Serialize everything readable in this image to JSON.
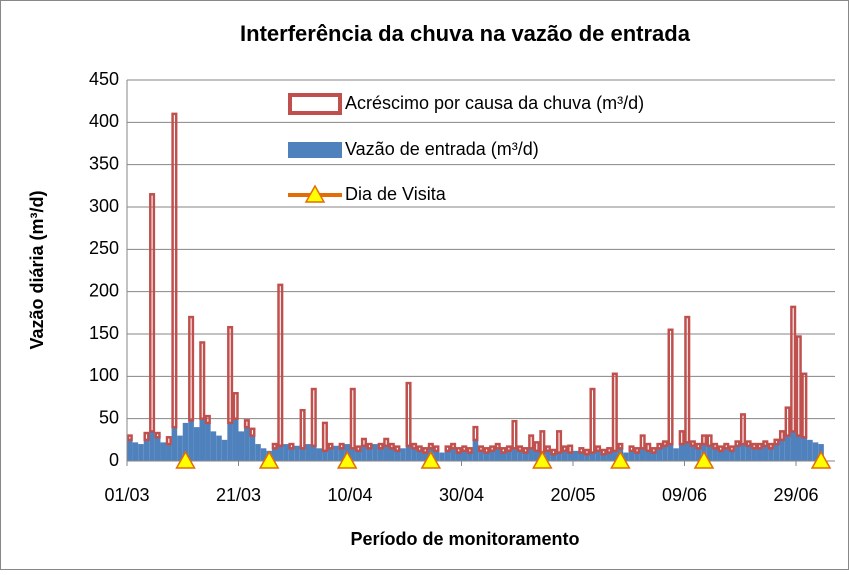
{
  "chart_data": {
    "type": "stacked-bar",
    "title": "Interferência da chuva na vazão de entrada",
    "x_label": "Período de monitoramento",
    "y_label": "Vazão diária (m³/d)",
    "x": [
      0,
      1,
      2,
      3,
      4,
      5,
      6,
      7,
      8,
      9,
      10,
      11,
      12,
      13,
      14,
      15,
      16,
      17,
      18,
      19,
      20,
      21,
      22,
      23,
      24,
      25,
      26,
      27,
      28,
      29,
      30,
      31,
      32,
      33,
      34,
      35,
      36,
      37,
      38,
      39,
      40,
      41,
      42,
      43,
      44,
      45,
      46,
      47,
      48,
      49,
      50,
      51,
      52,
      53,
      54,
      55,
      56,
      57,
      58,
      59,
      60,
      61,
      62,
      63,
      64,
      65,
      66,
      67,
      68,
      69,
      70,
      71,
      72,
      73,
      74,
      75,
      76,
      77,
      78,
      79,
      80,
      81,
      82,
      83,
      84,
      85,
      86,
      87,
      88,
      89,
      90,
      91,
      92,
      93,
      94,
      95,
      96,
      97,
      98,
      99,
      100,
      101,
      102,
      103,
      104,
      105,
      106,
      107,
      108,
      109,
      110,
      111,
      112,
      113,
      114,
      115,
      116,
      117,
      118,
      119,
      120,
      121,
      122,
      123,
      124
    ],
    "series": [
      {
        "name": "Vazão de entrada  (m³/d)",
        "color": "#4f81bd",
        "values": [
          25,
          22,
          20,
          25,
          35,
          28,
          22,
          20,
          40,
          30,
          45,
          48,
          40,
          50,
          45,
          35,
          30,
          25,
          45,
          50,
          35,
          40,
          30,
          20,
          15,
          12,
          15,
          18,
          20,
          15,
          18,
          15,
          20,
          18,
          15,
          12,
          15,
          18,
          15,
          20,
          15,
          12,
          18,
          15,
          20,
          15,
          18,
          15,
          12,
          15,
          18,
          15,
          12,
          10,
          15,
          12,
          10,
          12,
          15,
          10,
          12,
          10,
          25,
          12,
          10,
          12,
          15,
          10,
          12,
          15,
          12,
          10,
          15,
          12,
          10,
          12,
          8,
          10,
          12,
          10,
          12,
          10,
          8,
          10,
          12,
          8,
          10,
          12,
          15,
          10,
          12,
          10,
          15,
          12,
          10,
          15,
          18,
          20,
          15,
          20,
          22,
          18,
          15,
          20,
          18,
          15,
          12,
          15,
          12,
          18,
          20,
          18,
          15,
          15,
          18,
          15,
          20,
          25,
          30,
          35,
          30,
          28,
          25,
          22,
          20
        ]
      },
      {
        "name": "Acréscimo por causa da chuva (m³/d)",
        "color": "#c0504d",
        "values": [
          5,
          0,
          0,
          8,
          280,
          5,
          0,
          8,
          370,
          0,
          0,
          122,
          0,
          90,
          8,
          0,
          0,
          0,
          113,
          30,
          0,
          8,
          8,
          0,
          0,
          0,
          5,
          190,
          0,
          5,
          0,
          45,
          0,
          67,
          0,
          33,
          5,
          0,
          5,
          0,
          70,
          5,
          8,
          5,
          0,
          5,
          8,
          5,
          5,
          0,
          74,
          5,
          5,
          5,
          5,
          5,
          0,
          5,
          5,
          5,
          5,
          5,
          15,
          5,
          5,
          5,
          5,
          5,
          5,
          32,
          5,
          5,
          15,
          10,
          25,
          5,
          5,
          25,
          5,
          8,
          0,
          5,
          5,
          75,
          5,
          5,
          5,
          91,
          5,
          0,
          5,
          5,
          15,
          8,
          5,
          5,
          5,
          135,
          0,
          15,
          148,
          5,
          5,
          10,
          12,
          5,
          5,
          5,
          5,
          5,
          35,
          5,
          5,
          5,
          5,
          5,
          5,
          10,
          33,
          147,
          117,
          75,
          0,
          0,
          0
        ]
      },
      {
        "name": "Dia de Visita",
        "color": "#e36c09",
        "x": [
          10,
          25,
          39,
          54,
          74,
          88,
          103,
          124
        ],
        "values": [
          0,
          0,
          0,
          0,
          0,
          0,
          0,
          0
        ]
      }
    ],
    "xlim": [
      0,
      127
    ],
    "xticks": [
      {
        "value": 0,
        "label": "01/03"
      },
      {
        "value": 20,
        "label": "21/03"
      },
      {
        "value": 40,
        "label": "10/04"
      },
      {
        "value": 60,
        "label": "30/04"
      },
      {
        "value": 80,
        "label": "20/05"
      },
      {
        "value": 100,
        "label": "09/06"
      },
      {
        "value": 120,
        "label": "29/06"
      }
    ],
    "ylim": [
      0,
      450
    ],
    "yticks": [
      0,
      50,
      100,
      150,
      200,
      250,
      300,
      350,
      400,
      450
    ],
    "grid": true
  }
}
